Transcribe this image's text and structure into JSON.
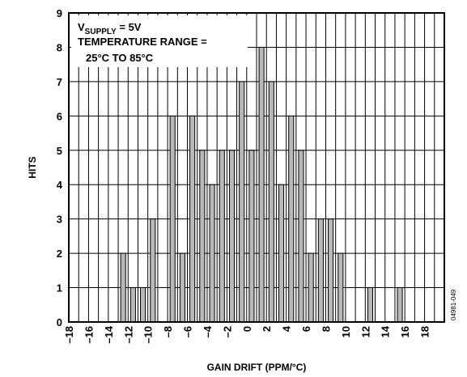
{
  "chart_data": {
    "type": "bar",
    "title": "",
    "xlabel": "GAIN DRIFT (PPM/°C)",
    "ylabel": "HITS",
    "xlim": [
      -18,
      20
    ],
    "ylim": [
      0,
      9
    ],
    "x_ticks": [
      -18,
      -16,
      -14,
      -12,
      -10,
      -8,
      -6,
      -4,
      -2,
      0,
      2,
      4,
      6,
      8,
      10,
      12,
      14,
      16,
      18
    ],
    "x_tick_labels": [
      "–18",
      "–16",
      "–14",
      "–12",
      "–10",
      "–8",
      "–6",
      "–4",
      "–2",
      "0",
      "2",
      "4",
      "6",
      "8",
      "10",
      "12",
      "14",
      "16",
      "18"
    ],
    "y_ticks": [
      0,
      1,
      2,
      3,
      4,
      5,
      6,
      7,
      8,
      9
    ],
    "y_tick_labels": [
      "0",
      "1",
      "2",
      "3",
      "4",
      "5",
      "6",
      "7",
      "8",
      "9"
    ],
    "grid": true,
    "bar_width": 0.5,
    "bars": [
      {
        "x": -12.5,
        "value": 2
      },
      {
        "x": -11.5,
        "value": 1
      },
      {
        "x": -10.5,
        "value": 1
      },
      {
        "x": -9.5,
        "value": 3
      },
      {
        "x": -7.5,
        "value": 6
      },
      {
        "x": -6.5,
        "value": 2
      },
      {
        "x": -5.5,
        "value": 6
      },
      {
        "x": -4.5,
        "value": 5
      },
      {
        "x": -3.5,
        "value": 4
      },
      {
        "x": -2.5,
        "value": 5
      },
      {
        "x": -1.5,
        "value": 5
      },
      {
        "x": -0.5,
        "value": 7
      },
      {
        "x": 0.5,
        "value": 5
      },
      {
        "x": 1.5,
        "value": 8
      },
      {
        "x": 2.5,
        "value": 7
      },
      {
        "x": 3.5,
        "value": 4
      },
      {
        "x": 4.5,
        "value": 6
      },
      {
        "x": 5.5,
        "value": 5
      },
      {
        "x": 6.5,
        "value": 2
      },
      {
        "x": 7.5,
        "value": 3
      },
      {
        "x": 8.5,
        "value": 3
      },
      {
        "x": 9.5,
        "value": 2
      },
      {
        "x": 12.5,
        "value": 1
      },
      {
        "x": 15.5,
        "value": 1
      }
    ],
    "annotation": {
      "line1_main": "V",
      "line1_sub": "SUPPLY",
      "line1_rest": " = 5V",
      "line2": "TEMPERATURE RANGE =",
      "line3": "25°C TO 85°C"
    },
    "side_code": "04981-049",
    "colors": {
      "bar_fill": "#b8b8b8",
      "bar_stroke": "#000000",
      "grid": "#000000",
      "frame": "#000000",
      "background": "#ffffff"
    }
  }
}
